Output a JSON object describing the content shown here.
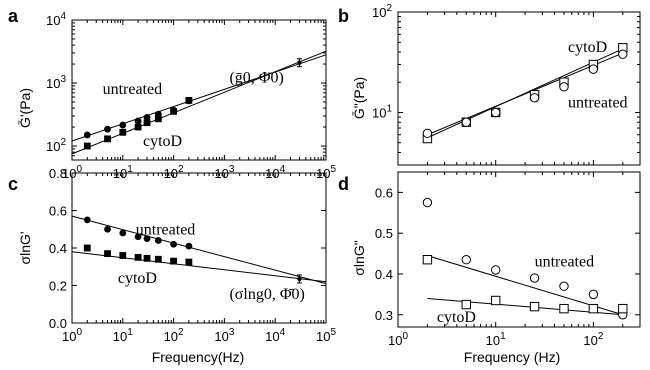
{
  "chart_data": [
    {
      "panel": "a",
      "type": "scatter",
      "xlabel": "",
      "ylabel": "Ḡ'(Pa)",
      "xscale": "log",
      "yscale": "log",
      "xlim": [
        1,
        100000
      ],
      "ylim": [
        60,
        10000
      ],
      "x_ticks": [
        "10^0",
        "10^1",
        "10^2",
        "10^3",
        "10^4",
        "10^5"
      ],
      "y_ticks": [
        "10^2",
        "10^3",
        "10^4"
      ],
      "series": [
        {
          "name": "untreated",
          "marker": "filled-circle",
          "x": [
            2,
            5,
            10,
            20,
            30,
            50,
            100,
            200
          ],
          "y": [
            150,
            185,
            215,
            250,
            285,
            320,
            370,
            520
          ]
        },
        {
          "name": "cytoD",
          "marker": "filled-square",
          "x": [
            2,
            5,
            10,
            20,
            30,
            50,
            100,
            200
          ],
          "y": [
            100,
            130,
            165,
            200,
            235,
            270,
            355,
            530
          ]
        }
      ],
      "special_point": {
        "x": 30000,
        "y": 2100,
        "label": "(ḡ0, Φ̄0)"
      },
      "fits": [
        {
          "name": "untreated",
          "x": [
            1,
            100000
          ],
          "y": [
            120,
            2800
          ]
        },
        {
          "name": "cytoD",
          "x": [
            1,
            100000
          ],
          "y": [
            75,
            3200
          ]
        }
      ],
      "annotations": [
        {
          "text": "untreated",
          "x": 4,
          "y": 800
        },
        {
          "text": "cytoD",
          "x": 25,
          "y": 120
        }
      ]
    },
    {
      "panel": "b",
      "type": "scatter",
      "xlabel": "",
      "ylabel": "Ḡ\"(Pa)",
      "xscale": "log",
      "yscale": "log",
      "xlim": [
        1,
        300
      ],
      "ylim": [
        3,
        100
      ],
      "x_ticks": [],
      "y_ticks": [
        "10^1",
        "10^2"
      ],
      "series": [
        {
          "name": "cytoD",
          "marker": "open-square",
          "x": [
            2,
            5,
            10,
            25,
            50,
            100,
            200
          ],
          "y": [
            5.5,
            8,
            10,
            15,
            20,
            30,
            44
          ]
        },
        {
          "name": "untreated",
          "marker": "open-circle",
          "x": [
            2,
            5,
            10,
            25,
            50,
            100,
            200
          ],
          "y": [
            6.2,
            8,
            10,
            14,
            18,
            27,
            38
          ]
        }
      ],
      "fits": [
        {
          "name": "cytoD",
          "x": [
            2,
            200
          ],
          "y": [
            5.6,
            43
          ]
        },
        {
          "name": "untreated",
          "x": [
            2,
            200
          ],
          "y": [
            6.0,
            39
          ]
        }
      ],
      "annotations": [
        {
          "text": "cytoD",
          "x": 55,
          "y": 45
        },
        {
          "text": "untreated",
          "x": 55,
          "y": 12.5
        }
      ]
    },
    {
      "panel": "c",
      "type": "scatter",
      "xlabel": "Frequency(Hz)",
      "ylabel": "σlnG'",
      "xscale": "log",
      "yscale": "linear",
      "xlim": [
        1,
        100000
      ],
      "ylim": [
        0.0,
        0.8
      ],
      "x_ticks": [
        "10^0",
        "10^1",
        "10^2",
        "10^3",
        "10^4",
        "10^5"
      ],
      "y_ticks": [
        "0.0",
        "0.2",
        "0.4",
        "0.6",
        "0.8"
      ],
      "series": [
        {
          "name": "untreated",
          "marker": "filled-circle",
          "x": [
            2,
            5,
            10,
            20,
            30,
            50,
            100,
            200
          ],
          "y": [
            0.55,
            0.5,
            0.48,
            0.46,
            0.45,
            0.44,
            0.42,
            0.41
          ]
        },
        {
          "name": "cytoD",
          "marker": "filled-square",
          "x": [
            2,
            5,
            10,
            20,
            30,
            50,
            100,
            200
          ],
          "y": [
            0.4,
            0.37,
            0.36,
            0.35,
            0.345,
            0.34,
            0.33,
            0.325
          ]
        }
      ],
      "special_point": {
        "x": 30000,
        "y": 0.235,
        "label": "(σlng0, Φ̄0)"
      },
      "fits": [
        {
          "name": "untreated",
          "x": [
            1,
            100000
          ],
          "y": [
            0.57,
            0.21
          ]
        },
        {
          "name": "cytoD",
          "x": [
            1,
            100000
          ],
          "y": [
            0.38,
            0.22
          ]
        }
      ],
      "annotations": [
        {
          "text": "untreated",
          "x": 18,
          "y": 0.5
        },
        {
          "text": "cytoD",
          "x": 8,
          "y": 0.24
        }
      ]
    },
    {
      "panel": "d",
      "type": "scatter",
      "xlabel": "Frequency (Hz)",
      "ylabel": "σlnG\"",
      "xscale": "log",
      "yscale": "linear",
      "xlim": [
        1,
        300
      ],
      "ylim": [
        0.27,
        0.65
      ],
      "x_ticks": [
        "10^0",
        "10^1",
        "10^2"
      ],
      "y_ticks": [
        "0.3",
        "0.4",
        "0.5",
        "0.6"
      ],
      "series": [
        {
          "name": "untreated",
          "marker": "open-circle",
          "x": [
            2,
            5,
            10,
            25,
            50,
            100,
            200
          ],
          "y": [
            0.575,
            0.435,
            0.41,
            0.39,
            0.37,
            0.35,
            0.3
          ]
        },
        {
          "name": "cytoD",
          "marker": "open-square",
          "x": [
            2,
            5,
            10,
            25,
            50,
            100,
            200
          ],
          "y": [
            0.435,
            0.325,
            0.335,
            0.32,
            0.315,
            0.315,
            0.315
          ]
        }
      ],
      "fits": [
        {
          "name": "untreated",
          "x": [
            2,
            200
          ],
          "y": [
            0.445,
            0.3
          ]
        },
        {
          "name": "cytoD",
          "x": [
            2,
            200
          ],
          "y": [
            0.34,
            0.3
          ]
        }
      ],
      "annotations": [
        {
          "text": "untreated",
          "x": 25,
          "y": 0.43
        },
        {
          "text": "cytoD",
          "x": 2.5,
          "y": 0.295
        }
      ]
    }
  ]
}
